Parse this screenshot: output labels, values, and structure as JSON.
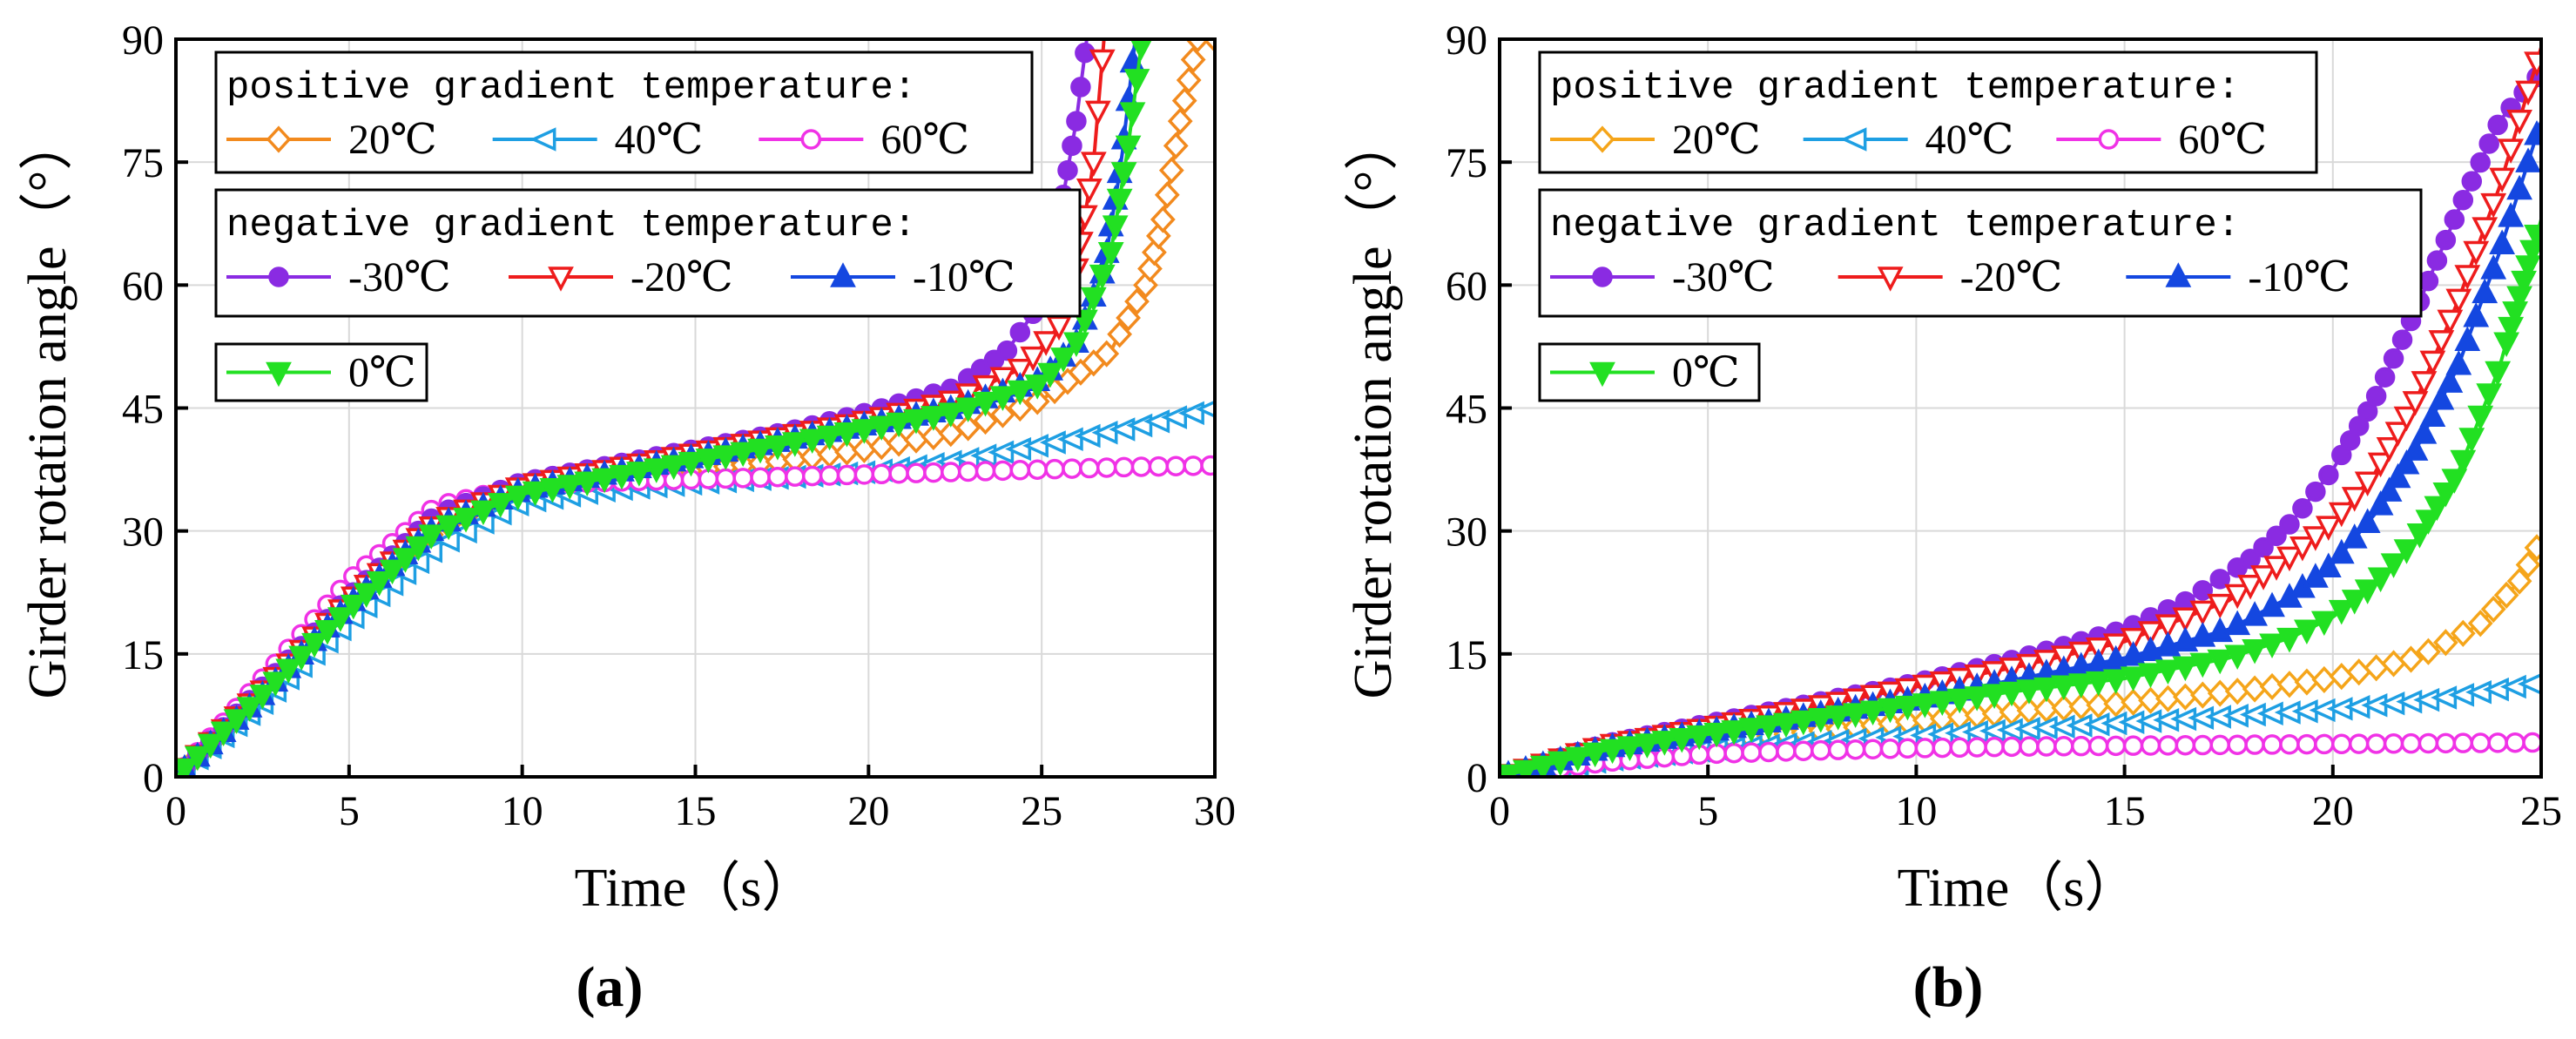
{
  "colors": {
    "p20": "#F28A1E",
    "p40": "#1E9FE3",
    "p60": "#F032E6",
    "n30": "#8A2BE2",
    "n20": "#EE1C1C",
    "n10": "#1447E0",
    "z0": "#22E022",
    "b20": "#F5A51A"
  },
  "chart_data": [
    {
      "type": "line",
      "panel_label": "(a)",
      "xlabel": "Time（s）",
      "ylabel": "Girder rotation angle（°）",
      "xlim": [
        0,
        30
      ],
      "ylim": [
        0,
        90
      ],
      "xticks": [
        "0",
        "5",
        "10",
        "15",
        "20",
        "25",
        "30"
      ],
      "yticks": [
        "0",
        "15",
        "30",
        "45",
        "60",
        "75",
        "90"
      ],
      "grid": true,
      "legend_placement": "top-left",
      "legend": {
        "positive_title": "positive gradient temperature:",
        "negative_title": "negative gradient temperature:",
        "positive": [
          "20℃",
          "40℃",
          "60℃"
        ],
        "negative": [
          "-30℃",
          "-20℃",
          "-10℃"
        ],
        "zero": [
          "0℃"
        ]
      },
      "series": [
        {
          "name": "20℃",
          "group": "positive",
          "color": "p20",
          "marker": "diamond-open",
          "x": [
            0,
            2.5,
            5,
            7.5,
            10,
            12.5,
            15,
            17.5,
            20,
            22.5,
            25,
            27,
            28,
            28.5,
            29,
            29.5,
            30
          ],
          "y": [
            0,
            10,
            21,
            30,
            35,
            36.5,
            37.5,
            38.5,
            40,
            42,
            46,
            52,
            60,
            68,
            80,
            90,
            90
          ]
        },
        {
          "name": "40℃",
          "group": "positive",
          "color": "p40",
          "marker": "triangle-left-open",
          "x": [
            0,
            2.5,
            5,
            7.5,
            10,
            12.5,
            15,
            17.5,
            20,
            22.5,
            25,
            27.5,
            30
          ],
          "y": [
            0,
            9,
            19,
            28,
            33.5,
            35,
            35.8,
            36.5,
            37.2,
            38.5,
            40.5,
            42.5,
            45
          ]
        },
        {
          "name": "60℃",
          "group": "positive",
          "color": "p60",
          "marker": "circle-open",
          "x": [
            0,
            2.5,
            5,
            7.5,
            10,
            12.5,
            15,
            17.5,
            20,
            22.5,
            25,
            27.5,
            30
          ],
          "y": [
            0,
            12,
            24,
            33,
            35.5,
            36,
            36.3,
            36.6,
            36.9,
            37.2,
            37.5,
            37.8,
            38
          ]
        },
        {
          "name": "-30℃",
          "group": "negative",
          "color": "n30",
          "marker": "circle-filled",
          "x": [
            0,
            2.5,
            5,
            7.5,
            10,
            12.5,
            15,
            17.5,
            20,
            22.5,
            24,
            25,
            25.5,
            26,
            26.3
          ],
          "y": [
            0,
            11,
            22,
            32,
            36,
            38,
            40,
            42,
            44.5,
            47.5,
            52,
            58,
            68,
            80,
            90
          ]
        },
        {
          "name": "-20℃",
          "group": "negative",
          "color": "n20",
          "marker": "triangle-down-open",
          "x": [
            0,
            2.5,
            5,
            7.5,
            10,
            12.5,
            15,
            17.5,
            20,
            22.5,
            24.5,
            25.5,
            26,
            26.5,
            26.8
          ],
          "y": [
            0,
            10.5,
            21.5,
            31,
            35.5,
            37.5,
            39.5,
            41.5,
            43.5,
            46,
            50,
            55,
            62,
            75,
            90
          ]
        },
        {
          "name": "-10℃",
          "group": "negative",
          "color": "n10",
          "marker": "triangle-up-filled",
          "x": [
            0,
            2.5,
            5,
            7.5,
            10,
            12.5,
            15,
            17.5,
            20,
            22.5,
            25,
            26,
            26.8,
            27.3,
            27.7
          ],
          "y": [
            0,
            10,
            21,
            30.5,
            35,
            37,
            39,
            41,
            43,
            45,
            48.5,
            53,
            62,
            75,
            90
          ]
        },
        {
          "name": "0℃",
          "group": "zero",
          "color": "z0",
          "marker": "triangle-down-filled",
          "x": [
            0,
            2.5,
            5,
            7.5,
            10,
            12.5,
            15,
            17.5,
            20,
            22.5,
            25,
            26,
            27,
            27.5,
            27.9
          ],
          "y": [
            0,
            10,
            20.5,
            30,
            34.5,
            36.5,
            38.5,
            40.5,
            42.5,
            44.5,
            48,
            53,
            64,
            77,
            90
          ]
        }
      ]
    },
    {
      "type": "line",
      "panel_label": "(b)",
      "xlabel": "Time（s）",
      "ylabel": "Girder rotation angle（°）",
      "xlim": [
        0,
        25
      ],
      "ylim": [
        0,
        90
      ],
      "xticks": [
        "0",
        "5",
        "10",
        "15",
        "20",
        "25"
      ],
      "yticks": [
        "0",
        "15",
        "30",
        "45",
        "60",
        "75",
        "90"
      ],
      "grid": true,
      "legend_placement": "top-left",
      "legend": {
        "positive_title": "positive gradient temperature:",
        "negative_title": "negative gradient temperature:",
        "positive": [
          "20℃",
          "40℃",
          "60℃"
        ],
        "negative": [
          "-30℃",
          "-20℃",
          "-10℃"
        ],
        "zero": [
          "0℃"
        ]
      },
      "series": [
        {
          "name": "20℃",
          "group": "positive",
          "color": "b20",
          "marker": "diamond-open",
          "x": [
            0,
            2.5,
            5,
            7.5,
            10,
            12.5,
            15,
            17.5,
            20,
            22,
            23.5,
            24.5,
            25
          ],
          "y": [
            0,
            2.5,
            4.2,
            5.5,
            6.8,
            8,
            9,
            10.3,
            12,
            14.5,
            18.5,
            24,
            29
          ]
        },
        {
          "name": "40℃",
          "group": "positive",
          "color": "p40",
          "marker": "triangle-left-open",
          "x": [
            0,
            2.5,
            5,
            7.5,
            10,
            12.5,
            15,
            17.5,
            20,
            22.5,
            25
          ],
          "y": [
            0,
            2,
            3.3,
            4.2,
            5,
            5.8,
            6.6,
            7.4,
            8.2,
            9.5,
            11.5
          ]
        },
        {
          "name": "60℃",
          "group": "positive",
          "color": "p60",
          "marker": "circle-open",
          "x": [
            0,
            2.5,
            5,
            7.5,
            10,
            12.5,
            15,
            17.5,
            20,
            22.5,
            25
          ],
          "y": [
            0,
            1.8,
            2.8,
            3.2,
            3.5,
            3.7,
            3.8,
            3.9,
            4,
            4.1,
            4.2
          ]
        },
        {
          "name": "-30℃",
          "group": "negative",
          "color": "n30",
          "marker": "circle-filled",
          "x": [
            0,
            2.5,
            5,
            7.5,
            10,
            12.5,
            15,
            16.5,
            18,
            19,
            20,
            21,
            22,
            23,
            24,
            25
          ],
          "y": [
            0,
            4,
            6.5,
            9,
            11.5,
            14.5,
            18,
            21.5,
            26.5,
            31,
            37.5,
            46,
            57,
            69,
            80,
            86
          ]
        },
        {
          "name": "-20℃",
          "group": "negative",
          "color": "n20",
          "marker": "triangle-down-open",
          "x": [
            0,
            2.5,
            5,
            7.5,
            10,
            12.5,
            15,
            17.5,
            19,
            20,
            21,
            22,
            23,
            24,
            25
          ],
          "y": [
            0,
            3.8,
            6,
            8.5,
            11,
            13.5,
            16.5,
            21.5,
            27,
            31,
            37,
            46,
            58,
            72,
            89
          ]
        },
        {
          "name": "-10℃",
          "group": "negative",
          "color": "n10",
          "marker": "triangle-up-filled",
          "x": [
            0,
            2.5,
            5,
            7.5,
            10,
            12.5,
            15,
            17.5,
            19,
            20,
            21,
            22,
            23,
            24,
            25
          ],
          "y": [
            0,
            3.5,
            5.5,
            7.5,
            9.5,
            12,
            14.5,
            18,
            22,
            26,
            32,
            40,
            50,
            64,
            80
          ]
        },
        {
          "name": "0℃",
          "group": "zero",
          "color": "z0",
          "marker": "triangle-down-filled",
          "x": [
            0,
            2.5,
            5,
            7.5,
            10,
            12.5,
            15,
            17.5,
            19,
            20,
            21,
            22,
            23,
            24,
            25
          ],
          "y": [
            0,
            3.2,
            5.2,
            7,
            8.8,
            10.5,
            12,
            14.5,
            17,
            19.5,
            23.5,
            29,
            37,
            50,
            68
          ]
        }
      ]
    }
  ]
}
